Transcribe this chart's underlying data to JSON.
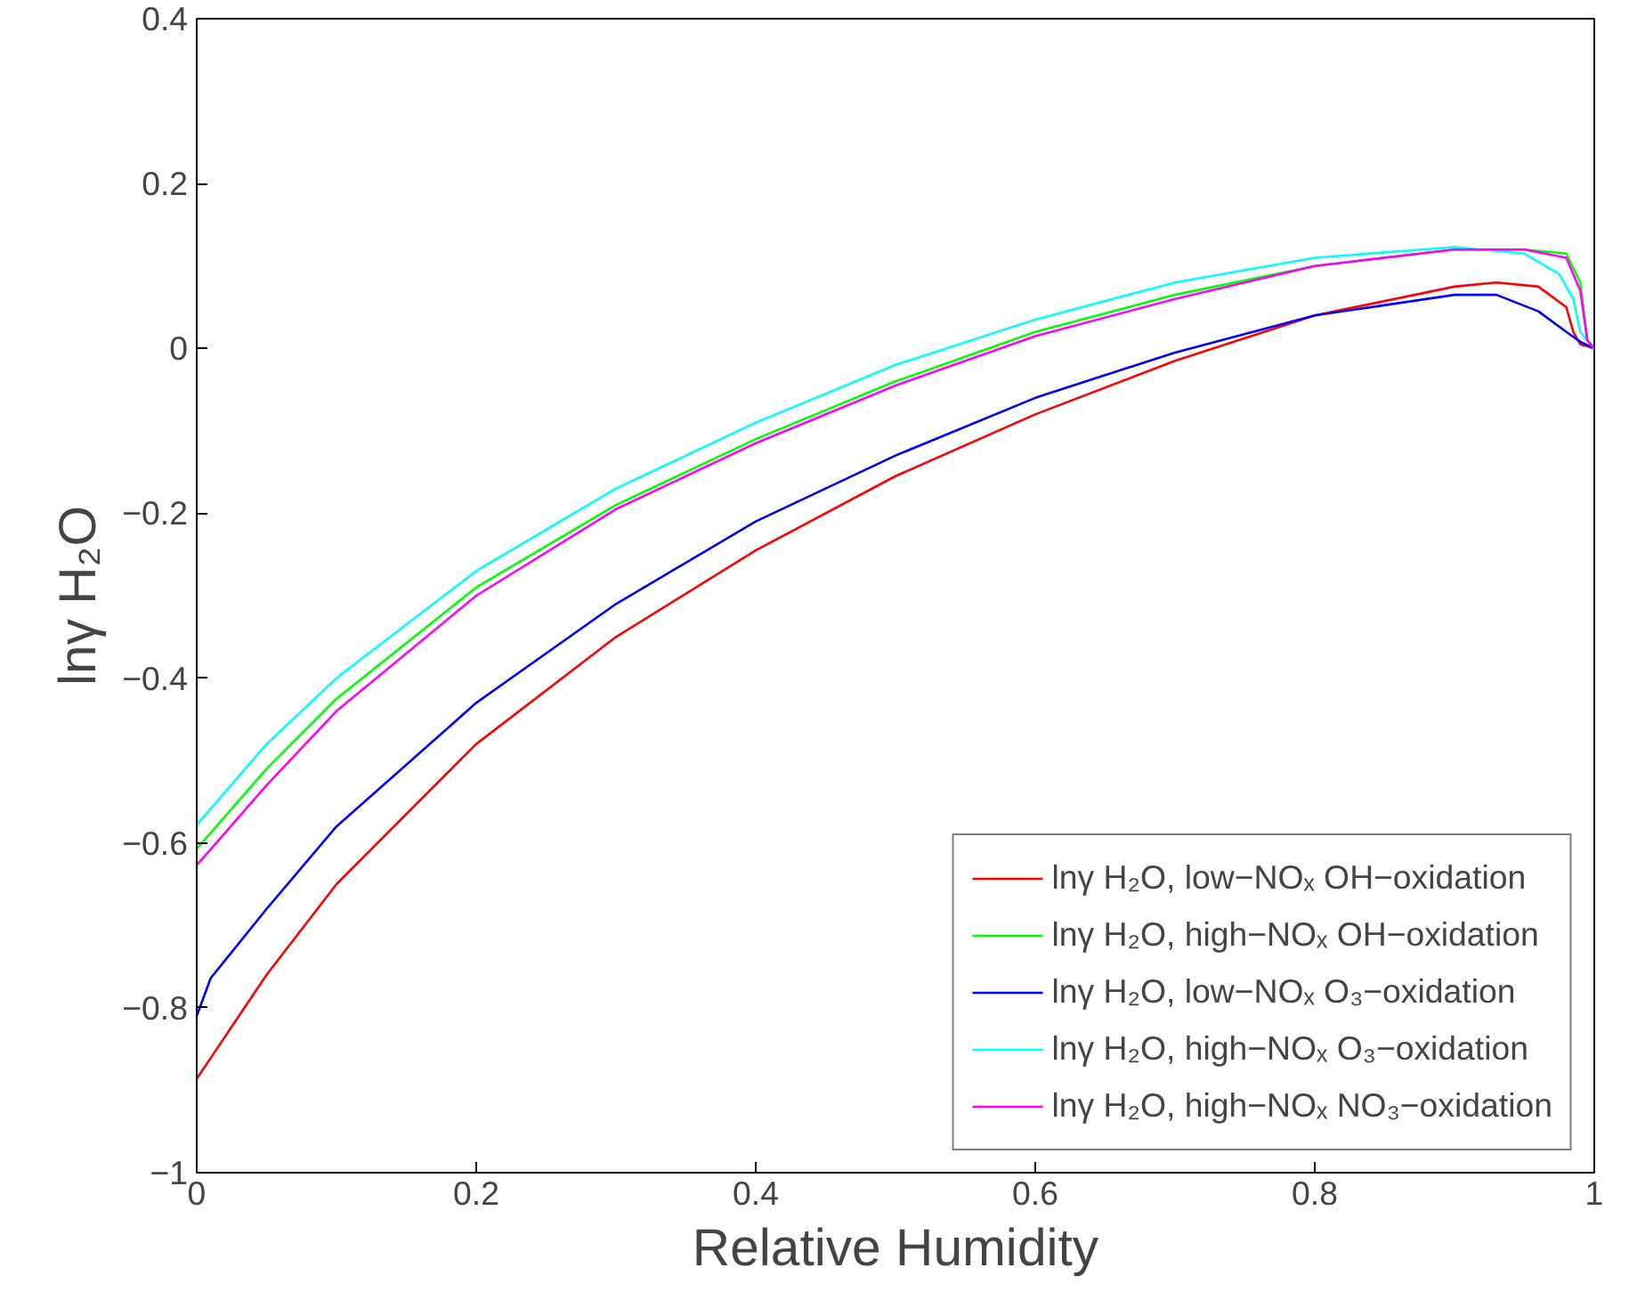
{
  "chart_data": {
    "type": "line",
    "xlabel": "Relative Humidity",
    "ylabel": "lnγ H₂O",
    "xlim": [
      0,
      1
    ],
    "ylim": [
      -1,
      0.4
    ],
    "xticks": [
      0,
      0.2,
      0.4,
      0.6,
      0.8,
      1
    ],
    "yticks": [
      {
        "value": -1,
        "label": "−1"
      },
      {
        "value": -0.8,
        "label": "−0.8"
      },
      {
        "value": -0.6,
        "label": "−0.6"
      },
      {
        "value": -0.4,
        "label": "−0.4"
      },
      {
        "value": -0.2,
        "label": "−0.2"
      },
      0,
      0.2,
      0.4
    ],
    "grid": false,
    "legend": "bottom right",
    "line_style": "solid",
    "marker": "none",
    "series": [
      {
        "name": "lnγ H₂O, low−NOₓ OH−oxidation",
        "color": "#ff0000",
        "x": [
          0,
          0.05,
          0.1,
          0.2,
          0.3,
          0.4,
          0.5,
          0.6,
          0.7,
          0.8,
          0.9,
          0.93,
          0.96,
          0.98,
          0.985,
          0.99,
          1
        ],
        "values": [
          -0.886,
          -0.76,
          -0.65,
          -0.48,
          -0.35,
          -0.245,
          -0.155,
          -0.08,
          -0.015,
          0.04,
          0.075,
          0.08,
          0.075,
          0.05,
          0.02,
          0.005,
          0
        ]
      },
      {
        "name": "lnγ H₂O, high−NOₓ OH−oxidation",
        "color": "#00ff00",
        "x": [
          0,
          0.05,
          0.1,
          0.2,
          0.3,
          0.4,
          0.5,
          0.6,
          0.7,
          0.8,
          0.9,
          0.95,
          0.98,
          0.99,
          0.995,
          1
        ],
        "values": [
          -0.607,
          -0.51,
          -0.425,
          -0.29,
          -0.19,
          -0.11,
          -0.04,
          0.02,
          0.065,
          0.1,
          0.12,
          0.12,
          0.115,
          0.08,
          0.01,
          0
        ]
      },
      {
        "name": "lnγ H₂O, low−NOₓ O₃−oxidation",
        "color": "#0000ff",
        "x": [
          0,
          0.01,
          0.05,
          0.1,
          0.2,
          0.3,
          0.4,
          0.5,
          0.6,
          0.7,
          0.8,
          0.9,
          0.93,
          0.96,
          0.98,
          0.99,
          1
        ],
        "values": [
          -0.81,
          -0.764,
          -0.68,
          -0.58,
          -0.43,
          -0.31,
          -0.21,
          -0.13,
          -0.06,
          -0.005,
          0.04,
          0.065,
          0.065,
          0.045,
          0.02,
          0.008,
          0
        ]
      },
      {
        "name": "lnγ H₂O, high−NOₓ O₃−oxidation",
        "color": "#00ffff",
        "x": [
          0,
          0.05,
          0.1,
          0.2,
          0.3,
          0.4,
          0.5,
          0.6,
          0.7,
          0.8,
          0.9,
          0.95,
          0.975,
          0.985,
          0.99,
          1
        ],
        "values": [
          -0.578,
          -0.48,
          -0.4,
          -0.27,
          -0.17,
          -0.09,
          -0.02,
          0.035,
          0.08,
          0.11,
          0.123,
          0.115,
          0.09,
          0.06,
          0.02,
          0
        ]
      },
      {
        "name": "lnγ H₂O, high−NOₓ NO₃−oxidation",
        "color": "#ff00ff",
        "x": [
          0,
          0.05,
          0.1,
          0.2,
          0.3,
          0.4,
          0.5,
          0.6,
          0.7,
          0.8,
          0.9,
          0.95,
          0.98,
          0.99,
          0.995,
          1
        ],
        "values": [
          -0.627,
          -0.53,
          -0.44,
          -0.3,
          -0.195,
          -0.115,
          -0.045,
          0.015,
          0.06,
          0.1,
          0.12,
          0.12,
          0.11,
          0.07,
          0.01,
          0
        ]
      }
    ]
  }
}
